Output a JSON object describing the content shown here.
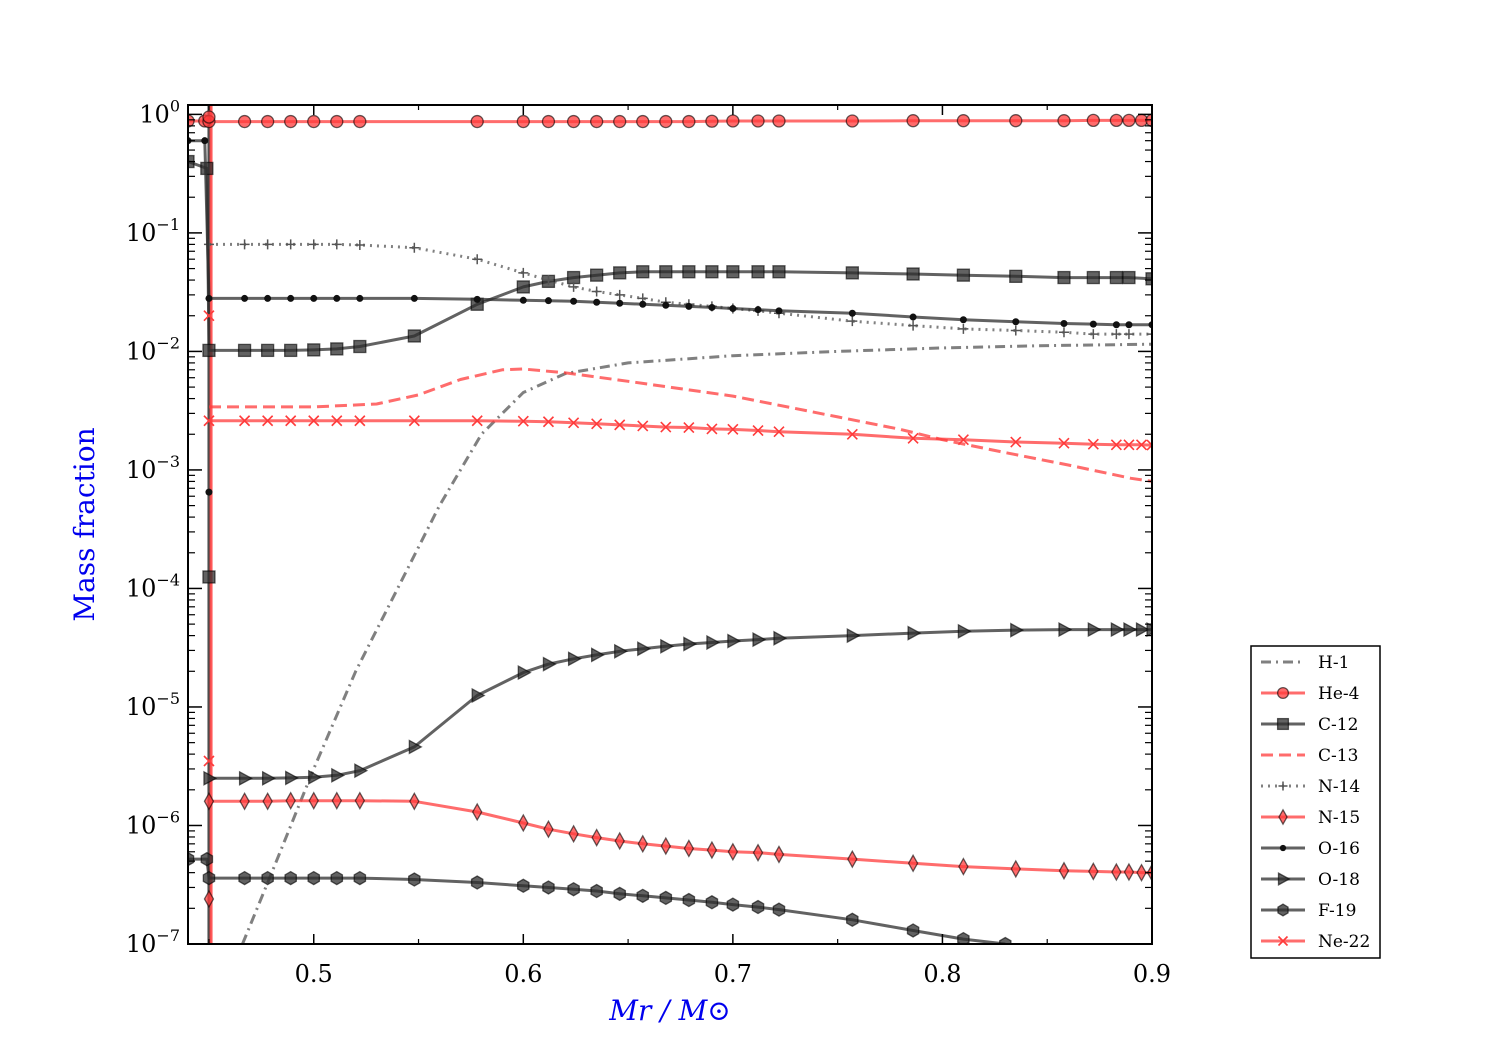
{
  "chart_data": {
    "type": "line",
    "title": "",
    "xlabel": "Mr / M⊙",
    "ylabel": "Mass fraction",
    "x_scale": "linear",
    "y_scale": "log",
    "xlim": [
      0.44,
      0.9
    ],
    "ylim": [
      1e-07,
      1.2
    ],
    "x_ticks": [
      0.5,
      0.6,
      0.7,
      0.8,
      0.9
    ],
    "x_tick_labels": [
      "0.5",
      "0.6",
      "0.7",
      "0.8",
      "0.9"
    ],
    "y_ticks": [
      1e-07,
      1e-06,
      1e-05,
      0.0001,
      0.001,
      0.01,
      0.1,
      1
    ],
    "y_tick_labels": [
      {
        "base": "10",
        "exp": "−7"
      },
      {
        "base": "10",
        "exp": "−6"
      },
      {
        "base": "10",
        "exp": "−5"
      },
      {
        "base": "10",
        "exp": "−4"
      },
      {
        "base": "10",
        "exp": "−3"
      },
      {
        "base": "10",
        "exp": "−2"
      },
      {
        "base": "10",
        "exp": "−1"
      },
      {
        "base": "10",
        "exp": "0"
      }
    ],
    "grid": false,
    "legend_position": "outside-right-bottom",
    "series": [
      {
        "name": "H-1",
        "color": "#555555",
        "dash": "dashdot",
        "marker": "none",
        "x": [
          0.466,
          0.48,
          0.5,
          0.52,
          0.54,
          0.56,
          0.58,
          0.6,
          0.62,
          0.65,
          0.7,
          0.75,
          0.8,
          0.85,
          0.9
        ],
        "y": [
          1e-07,
          4e-07,
          3e-06,
          2e-05,
          0.0001,
          0.0005,
          0.002,
          0.0045,
          0.0065,
          0.008,
          0.0092,
          0.01,
          0.0107,
          0.0112,
          0.0115
        ]
      },
      {
        "name": "He-4",
        "color": "#ff3b3b",
        "dash": "solid",
        "marker": "circle",
        "x": [
          0.44,
          0.448,
          0.45,
          0.467,
          0.478,
          0.489,
          0.5,
          0.511,
          0.522,
          0.578,
          0.6,
          0.612,
          0.624,
          0.635,
          0.646,
          0.657,
          0.668,
          0.679,
          0.69,
          0.7,
          0.712,
          0.722,
          0.757,
          0.786,
          0.81,
          0.835,
          0.858,
          0.872,
          0.883,
          0.889,
          0.895,
          0.9
        ],
        "y": [
          0.88,
          0.88,
          0.87,
          0.87,
          0.87,
          0.87,
          0.87,
          0.87,
          0.87,
          0.87,
          0.87,
          0.87,
          0.87,
          0.87,
          0.87,
          0.87,
          0.87,
          0.87,
          0.875,
          0.88,
          0.88,
          0.88,
          0.88,
          0.885,
          0.885,
          0.885,
          0.885,
          0.89,
          0.89,
          0.89,
          0.89,
          0.89
        ]
      },
      {
        "name": "C-12",
        "color": "#2e2e2e",
        "dash": "solid",
        "marker": "square",
        "x": [
          0.44,
          0.449,
          0.45,
          0.467,
          0.478,
          0.489,
          0.5,
          0.511,
          0.522,
          0.548,
          0.578,
          0.6,
          0.612,
          0.624,
          0.635,
          0.646,
          0.657,
          0.668,
          0.679,
          0.69,
          0.7,
          0.712,
          0.722,
          0.757,
          0.786,
          0.81,
          0.835,
          0.858,
          0.872,
          0.883,
          0.889,
          0.9
        ],
        "y": [
          0.4,
          0.35,
          0.0102,
          0.0102,
          0.0102,
          0.0102,
          0.0103,
          0.0105,
          0.011,
          0.0135,
          0.025,
          0.035,
          0.039,
          0.042,
          0.044,
          0.046,
          0.047,
          0.047,
          0.047,
          0.047,
          0.047,
          0.047,
          0.047,
          0.046,
          0.045,
          0.044,
          0.043,
          0.042,
          0.042,
          0.042,
          0.042,
          0.041
        ]
      },
      {
        "name": "C-13",
        "color": "#ff3b3b",
        "dash": "dashed",
        "marker": "none",
        "x": [
          0.45,
          0.5,
          0.53,
          0.55,
          0.57,
          0.59,
          0.6,
          0.62,
          0.65,
          0.7,
          0.75,
          0.78,
          0.8,
          0.83,
          0.86,
          0.89,
          0.9
        ],
        "y": [
          0.0034,
          0.0034,
          0.0036,
          0.0043,
          0.0058,
          0.007,
          0.0071,
          0.0066,
          0.0056,
          0.0042,
          0.0028,
          0.0022,
          0.0018,
          0.0014,
          0.0011,
          0.00085,
          0.0008
        ]
      },
      {
        "name": "N-14",
        "color": "#555555",
        "dash": "dotted",
        "marker": "plus",
        "x": [
          0.45,
          0.467,
          0.478,
          0.489,
          0.5,
          0.511,
          0.522,
          0.548,
          0.578,
          0.6,
          0.612,
          0.624,
          0.635,
          0.646,
          0.657,
          0.668,
          0.679,
          0.69,
          0.7,
          0.712,
          0.722,
          0.757,
          0.786,
          0.81,
          0.835,
          0.858,
          0.872,
          0.883,
          0.889,
          0.9
        ],
        "y": [
          0.08,
          0.08,
          0.08,
          0.08,
          0.08,
          0.08,
          0.079,
          0.075,
          0.06,
          0.046,
          0.04,
          0.035,
          0.032,
          0.03,
          0.028,
          0.026,
          0.025,
          0.024,
          0.023,
          0.022,
          0.021,
          0.018,
          0.0165,
          0.0155,
          0.015,
          0.0145,
          0.014,
          0.014,
          0.014,
          0.014
        ]
      },
      {
        "name": "N-15",
        "color": "#ff3b3b",
        "dash": "solid",
        "marker": "thin_diamond",
        "x": [
          0.45,
          0.467,
          0.478,
          0.489,
          0.5,
          0.511,
          0.522,
          0.548,
          0.578,
          0.6,
          0.612,
          0.624,
          0.635,
          0.646,
          0.657,
          0.668,
          0.679,
          0.69,
          0.7,
          0.712,
          0.722,
          0.757,
          0.786,
          0.81,
          0.835,
          0.858,
          0.872,
          0.883,
          0.889,
          0.895,
          0.9
        ],
        "y": [
          1.6e-06,
          1.6e-06,
          1.6e-06,
          1.62e-06,
          1.62e-06,
          1.62e-06,
          1.62e-06,
          1.6e-06,
          1.3e-06,
          1.05e-06,
          9.3e-07,
          8.5e-07,
          7.9e-07,
          7.4e-07,
          7e-07,
          6.7e-07,
          6.4e-07,
          6.2e-07,
          6e-07,
          5.9e-07,
          5.7e-07,
          5.2e-07,
          4.8e-07,
          4.5e-07,
          4.3e-07,
          4.15e-07,
          4.1e-07,
          4.05e-07,
          4.05e-07,
          4e-07,
          4e-07
        ]
      },
      {
        "name": "O-16",
        "color": "#2e2e2e",
        "dash": "solid",
        "marker": "point",
        "x": [
          0.44,
          0.448,
          0.45,
          0.467,
          0.478,
          0.489,
          0.5,
          0.511,
          0.522,
          0.548,
          0.578,
          0.6,
          0.612,
          0.624,
          0.635,
          0.646,
          0.657,
          0.668,
          0.679,
          0.69,
          0.7,
          0.712,
          0.722,
          0.757,
          0.786,
          0.81,
          0.835,
          0.858,
          0.872,
          0.883,
          0.889,
          0.9
        ],
        "y": [
          0.6,
          0.6,
          0.028,
          0.028,
          0.028,
          0.028,
          0.028,
          0.028,
          0.028,
          0.028,
          0.0275,
          0.027,
          0.0268,
          0.0265,
          0.026,
          0.0255,
          0.025,
          0.0245,
          0.024,
          0.0235,
          0.023,
          0.0225,
          0.022,
          0.021,
          0.0195,
          0.0185,
          0.0178,
          0.0172,
          0.017,
          0.0168,
          0.0168,
          0.0168
        ]
      },
      {
        "name": "O-18",
        "color": "#2e2e2e",
        "dash": "solid",
        "marker": "triangle_right",
        "x": [
          0.45,
          0.467,
          0.478,
          0.489,
          0.5,
          0.511,
          0.522,
          0.548,
          0.578,
          0.6,
          0.612,
          0.624,
          0.635,
          0.646,
          0.657,
          0.668,
          0.679,
          0.69,
          0.7,
          0.712,
          0.722,
          0.757,
          0.786,
          0.81,
          0.835,
          0.858,
          0.872,
          0.883,
          0.889,
          0.895,
          0.9
        ],
        "y": [
          2.5e-06,
          2.5e-06,
          2.5e-06,
          2.52e-06,
          2.55e-06,
          2.65e-06,
          2.9e-06,
          4.6e-06,
          1.25e-05,
          1.95e-05,
          2.3e-05,
          2.55e-05,
          2.75e-05,
          2.95e-05,
          3.1e-05,
          3.25e-05,
          3.4e-05,
          3.5e-05,
          3.6e-05,
          3.7e-05,
          3.8e-05,
          4e-05,
          4.2e-05,
          4.35e-05,
          4.45e-05,
          4.5e-05,
          4.5e-05,
          4.5e-05,
          4.5e-05,
          4.5e-05,
          4.5e-05
        ]
      },
      {
        "name": "F-19",
        "color": "#2e2e2e",
        "dash": "solid",
        "marker": "hexagon",
        "x": [
          0.44,
          0.449,
          0.45,
          0.467,
          0.478,
          0.489,
          0.5,
          0.511,
          0.522,
          0.548,
          0.578,
          0.6,
          0.612,
          0.624,
          0.635,
          0.646,
          0.657,
          0.668,
          0.679,
          0.69,
          0.7,
          0.712,
          0.722,
          0.757,
          0.786,
          0.81,
          0.83
        ],
        "y": [
          5.2e-07,
          5.2e-07,
          3.6e-07,
          3.6e-07,
          3.6e-07,
          3.6e-07,
          3.6e-07,
          3.6e-07,
          3.6e-07,
          3.5e-07,
          3.3e-07,
          3.1e-07,
          3e-07,
          2.9e-07,
          2.8e-07,
          2.65e-07,
          2.55e-07,
          2.45e-07,
          2.35e-07,
          2.25e-07,
          2.15e-07,
          2.05e-07,
          1.95e-07,
          1.6e-07,
          1.3e-07,
          1.1e-07,
          1e-07
        ]
      },
      {
        "name": "Ne-22",
        "color": "#ff3b3b",
        "dash": "solid",
        "marker": "x",
        "x": [
          0.45,
          0.467,
          0.478,
          0.489,
          0.5,
          0.511,
          0.522,
          0.548,
          0.578,
          0.6,
          0.612,
          0.624,
          0.635,
          0.646,
          0.657,
          0.668,
          0.679,
          0.69,
          0.7,
          0.712,
          0.722,
          0.757,
          0.786,
          0.81,
          0.835,
          0.858,
          0.872,
          0.883,
          0.889,
          0.895,
          0.9
        ],
        "y": [
          0.0026,
          0.0026,
          0.0026,
          0.0026,
          0.0026,
          0.0026,
          0.0026,
          0.0026,
          0.0026,
          0.00258,
          0.00255,
          0.0025,
          0.00245,
          0.0024,
          0.00235,
          0.0023,
          0.00228,
          0.00222,
          0.0022,
          0.00215,
          0.0021,
          0.002,
          0.00185,
          0.0018,
          0.00172,
          0.00168,
          0.00165,
          0.00163,
          0.00163,
          0.00163,
          0.00162
        ]
      }
    ],
    "vertical_drop_lines": [
      {
        "color": "#2e2e2e",
        "x": 0.45
      },
      {
        "color": "#ff3b3b",
        "x": 0.451
      }
    ],
    "edge_markers": [
      {
        "series": "He-4",
        "x": 0.45,
        "y": 0.95
      },
      {
        "series": "C-12",
        "x": 0.45,
        "y": 0.000125
      },
      {
        "series": "Ne-22",
        "x": 0.45,
        "y": 0.02
      },
      {
        "series": "Ne-22",
        "x": 0.45,
        "y": 3.5e-06
      },
      {
        "series": "N-15",
        "x": 0.45,
        "y": 2.4e-07
      },
      {
        "series": "O-16",
        "x": 0.45,
        "y": 0.00065
      }
    ]
  }
}
